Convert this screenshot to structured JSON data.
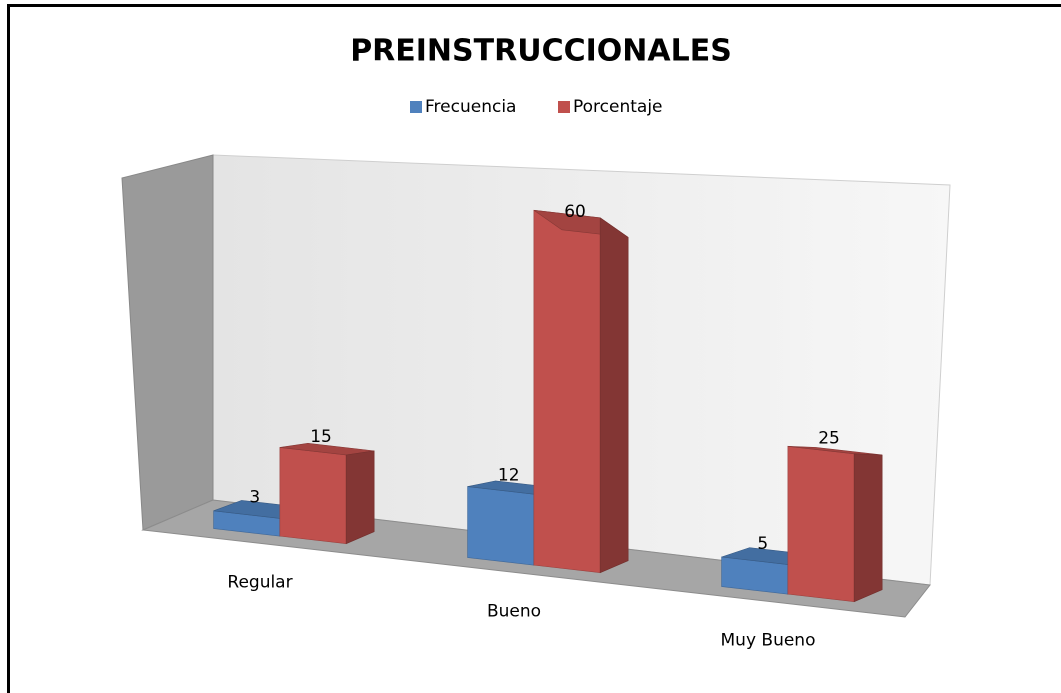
{
  "chart_data": {
    "type": "bar3d",
    "title": "PREINSTRUCCIONALES",
    "categories": [
      "Regular",
      "Bueno",
      "Muy Bueno"
    ],
    "series": [
      {
        "name": "Frecuencia",
        "color": "#4f81bd",
        "values": [
          3,
          12,
          5
        ]
      },
      {
        "name": "Porcentaje",
        "color": "#c0504d",
        "values": [
          15,
          60,
          25
        ]
      }
    ],
    "ylim": [
      0,
      70
    ],
    "legend": "top"
  }
}
